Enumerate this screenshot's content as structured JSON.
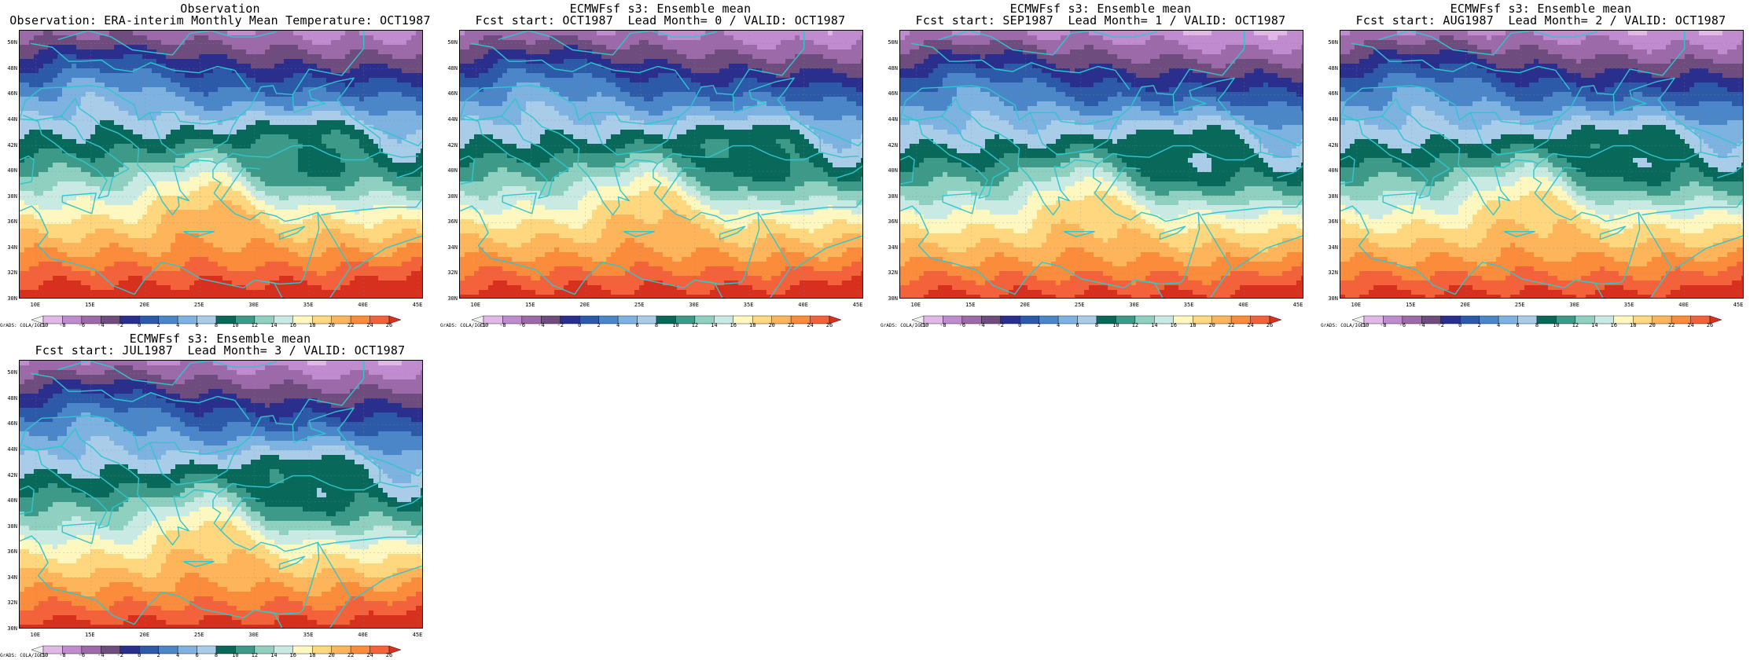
{
  "figure": {
    "panels": [
      {
        "id": "obs",
        "title_line1": "Observation",
        "title_line2": "Observation: ERA-interim Monthly Mean Temperature: OCT1987",
        "offset": 0
      },
      {
        "id": "lead0",
        "title_line1": "ECMWFsf s3: Ensemble mean",
        "title_line2": "Fcst start: OCT1987  Lead Month= 0 / VALID: OCT1987",
        "offset": 0.6
      },
      {
        "id": "lead1",
        "title_line1": "ECMWFsf s3: Ensemble mean",
        "title_line2": "Fcst start: SEP1987  Lead Month= 1 / VALID: OCT1987",
        "offset": 1.2
      },
      {
        "id": "lead2",
        "title_line1": "ECMWFsf s3: Ensemble mean",
        "title_line2": "Fcst start: AUG1987  Lead Month= 2 / VALID: OCT1987",
        "offset": 1.0
      },
      {
        "id": "lead3",
        "title_line1": "ECMWFsf s3: Ensemble mean",
        "title_line2": "Fcst start: JUL1987  Lead Month= 3 / VALID: OCT1987",
        "offset": 0.9
      }
    ],
    "lat_labels": [
      "50N",
      "48N",
      "46N",
      "44N",
      "42N",
      "40N",
      "38N",
      "36N",
      "34N",
      "32N",
      "30N"
    ],
    "lon_labels": [
      "10E",
      "15E",
      "20E",
      "25E",
      "30E",
      "35E",
      "40E",
      "45E"
    ],
    "credit": "GrADS: COLA/IGES",
    "colorbar": {
      "levels": [
        "-10",
        "-8",
        "-6",
        "-4",
        "-2",
        "0",
        "2",
        "4",
        "6",
        "8",
        "10",
        "12",
        "14",
        "16",
        "18",
        "20",
        "22",
        "24",
        "26"
      ],
      "colors": [
        "#f2f2f2",
        "#e0b8e6",
        "#c08bcf",
        "#9c6aa8",
        "#6e4c7e",
        "#2a2f8e",
        "#2c5aa8",
        "#4a86c8",
        "#7eb2e0",
        "#a9cce8",
        "#08695a",
        "#3d9988",
        "#8fd0c0",
        "#c9eae2",
        "#fff7c0",
        "#ffd77e",
        "#fdb45a",
        "#fb8c3c",
        "#f3623a",
        "#d7301f"
      ]
    },
    "map": {
      "lon_min": 8.5,
      "lon_max": 45.5,
      "lat_min": 30,
      "lat_max": 51,
      "coast_color": "#2fc6cf"
    }
  }
}
